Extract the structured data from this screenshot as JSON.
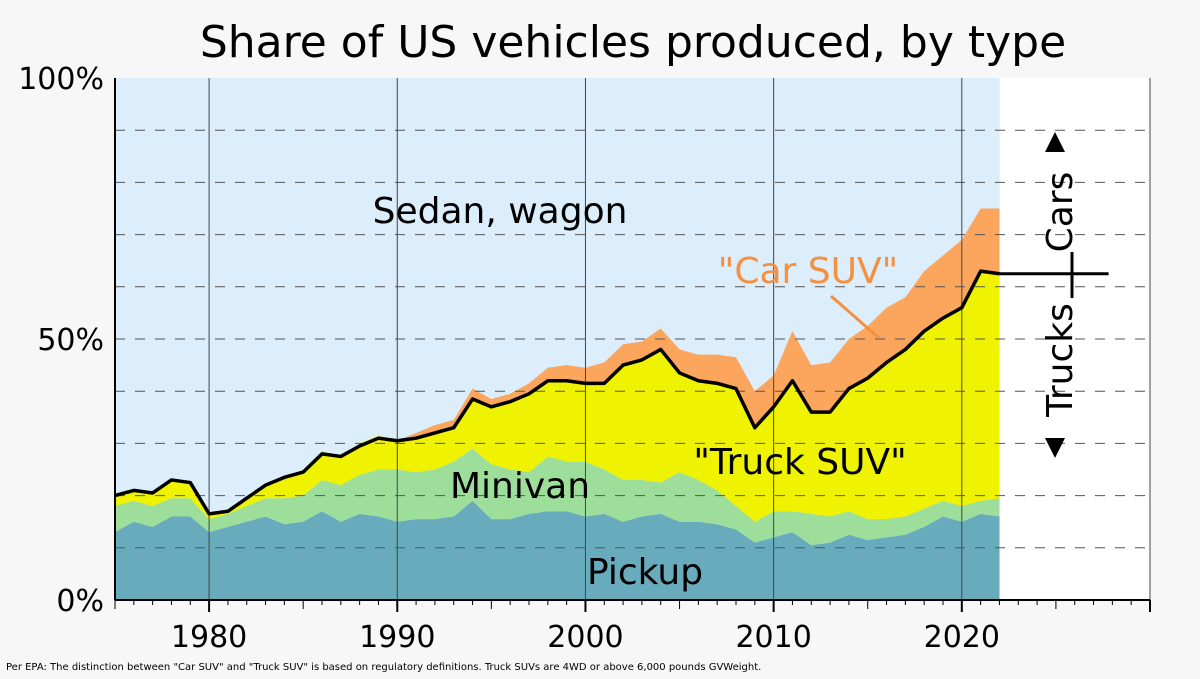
{
  "chart_data": {
    "type": "area",
    "title": "Share of US vehicles produced, by type",
    "footnote": "Per EPA: The distinction between \"Car SUV\" and \"Truck SUV\" is based on regulatory definitions. Truck SUVs are 4WD or above 6,000 pounds GVWeight.",
    "xlim": [
      1975,
      2030
    ],
    "ylim": [
      0,
      100
    ],
    "x_ticks": [
      1980,
      1990,
      2000,
      2010,
      2020
    ],
    "y_ticks": [
      {
        "value": 0,
        "label": "0%"
      },
      {
        "value": 50,
        "label": "50%"
      },
      {
        "value": 100,
        "label": "100%"
      }
    ],
    "grid": "dashed-horizontal",
    "x": [
      1975,
      1976,
      1977,
      1978,
      1979,
      1980,
      1981,
      1982,
      1983,
      1984,
      1985,
      1986,
      1987,
      1988,
      1989,
      1990,
      1991,
      1992,
      1993,
      1994,
      1995,
      1996,
      1997,
      1998,
      1999,
      2000,
      2001,
      2002,
      2003,
      2004,
      2005,
      2006,
      2007,
      2008,
      2009,
      2010,
      2011,
      2012,
      2013,
      2014,
      2015,
      2016,
      2017,
      2018,
      2019,
      2020,
      2021,
      2022
    ],
    "series": [
      {
        "name": "Pickup",
        "color": "#67abbd",
        "values": [
          13,
          15,
          14,
          16,
          16,
          13,
          14,
          15,
          16,
          14.5,
          15,
          17,
          15,
          16.5,
          16,
          15,
          15.5,
          15.5,
          16,
          19,
          15.5,
          15.5,
          16.5,
          17,
          17,
          16,
          16.5,
          15,
          16,
          16.5,
          15,
          15,
          14.5,
          13.5,
          11,
          12,
          13,
          10.5,
          11,
          12.5,
          11.5,
          12,
          12.5,
          14,
          16,
          15,
          16.5,
          16
        ]
      },
      {
        "name": "Minivan",
        "color": "#9ddf9a",
        "values": [
          5,
          4,
          4,
          3.5,
          3.5,
          2.5,
          2.5,
          3,
          3.5,
          5,
          5,
          6,
          7,
          7.5,
          9,
          10,
          9,
          9.5,
          10.5,
          10,
          10.5,
          9.5,
          8,
          10.5,
          9.5,
          10.5,
          8.5,
          8,
          7,
          6,
          9.5,
          8,
          6.5,
          4.5,
          4,
          5,
          4,
          6,
          5,
          4.5,
          4,
          3.5,
          3.5,
          3.5,
          3,
          3,
          2.5,
          3.5
        ]
      },
      {
        "name": "\"Truck SUV\"",
        "color": "#eff200",
        "values": [
          2,
          2,
          2.5,
          3.5,
          3,
          1,
          0.5,
          1.5,
          2.5,
          4,
          4.5,
          5.5,
          5.5,
          6,
          6.5,
          5.5,
          6.5,
          7,
          6.5,
          9.5,
          11,
          13,
          15,
          14.5,
          15.5,
          15,
          16.5,
          22,
          23,
          25.5,
          19,
          19,
          20.5,
          22.5,
          18,
          20,
          25,
          19.5,
          20,
          23.5,
          27,
          30,
          32,
          34,
          35,
          38,
          44,
          43
        ]
      },
      {
        "name": "\"Car SUV\"",
        "color": "#fba55d",
        "values": [
          0,
          0,
          0,
          0,
          0,
          0,
          0,
          0,
          0,
          0,
          0,
          0,
          0,
          0,
          0,
          0,
          1,
          1.5,
          1.5,
          2,
          1.5,
          1.5,
          2,
          2.5,
          3,
          3,
          4,
          4,
          3.5,
          4,
          4.5,
          5,
          5.5,
          6,
          7,
          6,
          9.5,
          9,
          9.5,
          9.5,
          10,
          10.5,
          10,
          11.5,
          12,
          13,
          12,
          12.5
        ]
      }
    ],
    "line": {
      "name": "Trucks / Cars boundary",
      "color": "#000000",
      "values": [
        20,
        21,
        20.5,
        23,
        22.5,
        16.5,
        17,
        19.5,
        22,
        23.5,
        24.5,
        28,
        27.5,
        29.5,
        31,
        30.5,
        31,
        32,
        33,
        38.5,
        37,
        38,
        39.5,
        42,
        42,
        41.5,
        41.5,
        45,
        46,
        48,
        43.5,
        42,
        41.5,
        40.5,
        33,
        37,
        42,
        36,
        36,
        40.5,
        42.5,
        45.5,
        48,
        51.5,
        54,
        56,
        63,
        62.5
      ]
    },
    "extended_line": {
      "x": [
        2022,
        2027.8
      ],
      "value": 62.5
    },
    "annotations": {
      "sedan": "Sedan, wagon",
      "car_suv": "\"Car SUV\"",
      "truck_suv": "\"Truck SUV\"",
      "minivan": "Minivan",
      "pickup": "Pickup",
      "cars": "Cars",
      "trucks": "Trucks"
    },
    "colors": {
      "sedan": "#dcedfb",
      "car_suv_label": "#f5913e",
      "axis": "#000000",
      "grid": "#555555"
    }
  }
}
